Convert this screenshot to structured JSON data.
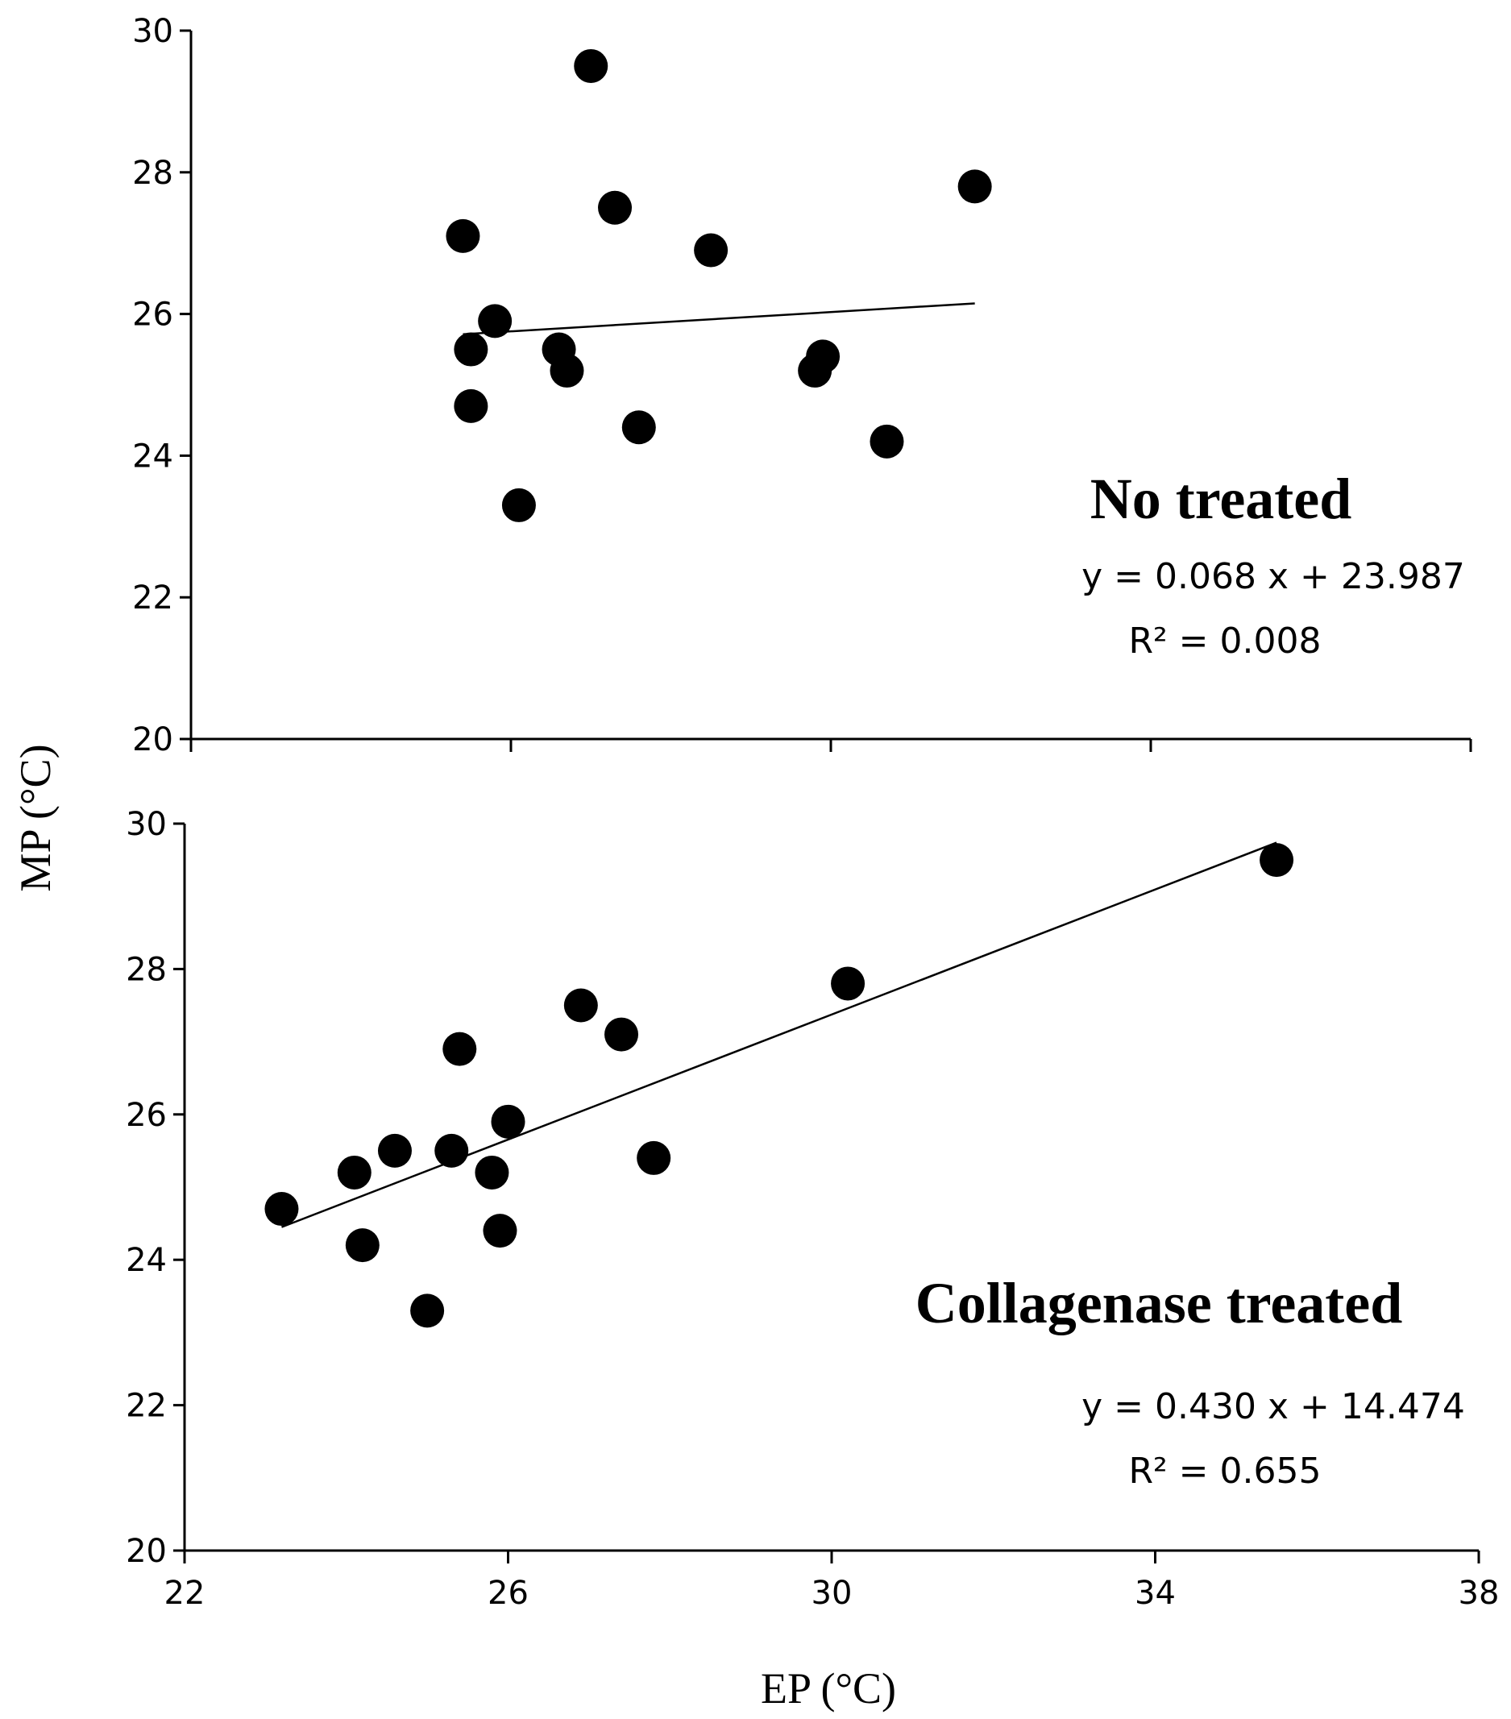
{
  "chart_data": {
    "type": "scatter",
    "shared_xlabel": "EP (°C)",
    "shared_ylabel": "MP (°C)",
    "panels": [
      {
        "title": "No treated",
        "equation": "y = 0.068 x + 23.987",
        "r2": "R² = 0.008",
        "xlim": [
          22,
          38
        ],
        "ylim": [
          20,
          30
        ],
        "x_ticks": [
          22,
          26,
          30,
          34,
          38
        ],
        "x_ticks_labeled": false,
        "y_ticks": [
          20,
          22,
          24,
          26,
          28,
          30
        ],
        "trendline": {
          "slope": 0.068,
          "intercept": 23.987,
          "x_range": [
            25.4,
            31.8
          ]
        },
        "points": [
          {
            "x": 27.0,
            "y": 29.5
          },
          {
            "x": 31.8,
            "y": 27.8
          },
          {
            "x": 27.3,
            "y": 27.5
          },
          {
            "x": 25.4,
            "y": 27.1
          },
          {
            "x": 28.5,
            "y": 26.9
          },
          {
            "x": 25.8,
            "y": 25.9
          },
          {
            "x": 25.5,
            "y": 25.5
          },
          {
            "x": 26.6,
            "y": 25.5
          },
          {
            "x": 29.9,
            "y": 25.4
          },
          {
            "x": 26.7,
            "y": 25.2
          },
          {
            "x": 29.8,
            "y": 25.2
          },
          {
            "x": 25.5,
            "y": 24.7
          },
          {
            "x": 27.6,
            "y": 24.4
          },
          {
            "x": 30.7,
            "y": 24.2
          },
          {
            "x": 26.1,
            "y": 23.3
          }
        ]
      },
      {
        "title": "Collagenase treated",
        "equation": "y = 0.430 x + 14.474",
        "r2": "R² = 0.655",
        "xlim": [
          22,
          38
        ],
        "ylim": [
          20,
          30
        ],
        "x_ticks": [
          22,
          26,
          30,
          34,
          38
        ],
        "x_ticks_labeled": true,
        "y_ticks": [
          20,
          22,
          24,
          26,
          28,
          30
        ],
        "trendline": {
          "slope": 0.43,
          "intercept": 14.474,
          "x_range": [
            23.2,
            35.5
          ]
        },
        "points": [
          {
            "x": 35.5,
            "y": 29.5
          },
          {
            "x": 30.2,
            "y": 27.8
          },
          {
            "x": 26.9,
            "y": 27.5
          },
          {
            "x": 27.4,
            "y": 27.1
          },
          {
            "x": 25.4,
            "y": 26.9
          },
          {
            "x": 26.0,
            "y": 25.9
          },
          {
            "x": 24.6,
            "y": 25.5
          },
          {
            "x": 25.3,
            "y": 25.5
          },
          {
            "x": 27.8,
            "y": 25.4
          },
          {
            "x": 24.1,
            "y": 25.2
          },
          {
            "x": 25.8,
            "y": 25.2
          },
          {
            "x": 23.2,
            "y": 24.7
          },
          {
            "x": 25.9,
            "y": 24.4
          },
          {
            "x": 24.2,
            "y": 24.2
          },
          {
            "x": 25.0,
            "y": 23.3
          }
        ]
      }
    ]
  }
}
